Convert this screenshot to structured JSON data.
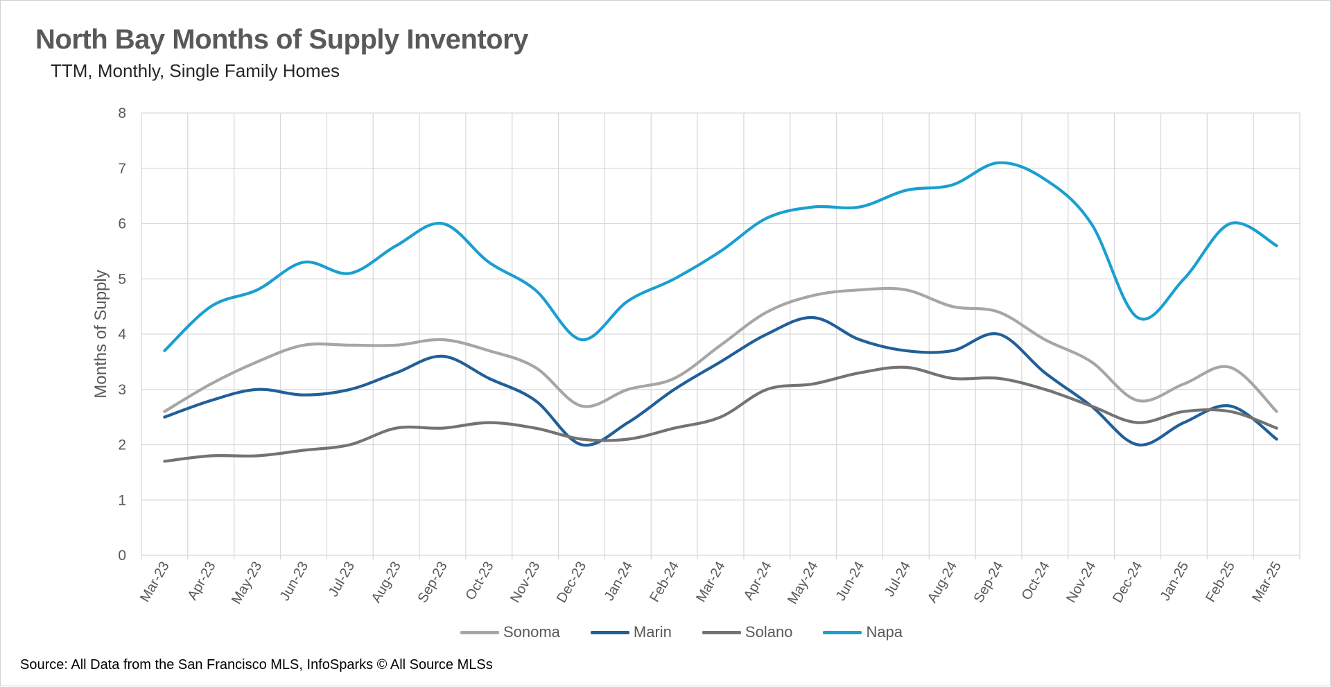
{
  "title": "North Bay Months of Supply Inventory",
  "subtitle": "TTM, Monthly, Single Family Homes",
  "source": "Source: All Data from the San Francisco MLS, InfoSparks © All Source MLSs",
  "chart_data": {
    "type": "line",
    "title": "North Bay Months of Supply Inventory",
    "subtitle": "TTM, Monthly, Single Family Homes",
    "xlabel": "",
    "ylabel": "Months of Supply",
    "ylim": [
      0,
      8
    ],
    "yticks": [
      "0",
      "1",
      "2",
      "3",
      "4",
      "5",
      "6",
      "7",
      "8"
    ],
    "grid": true,
    "legend_position": "bottom",
    "categories": [
      "Mar-23",
      "Apr-23",
      "May-23",
      "Jun-23",
      "Jul-23",
      "Aug-23",
      "Sep-23",
      "Oct-23",
      "Nov-23",
      "Dec-23",
      "Jan-24",
      "Feb-24",
      "Mar-24",
      "Apr-24",
      "May-24",
      "Jun-24",
      "Jul-24",
      "Aug-24",
      "Sep-24",
      "Oct-24",
      "Nov-24",
      "Dec-24",
      "Jan-25",
      "Feb-25",
      "Mar-25"
    ],
    "series": [
      {
        "name": "Sonoma",
        "color": "#a6a6a6",
        "values": [
          2.6,
          3.1,
          3.5,
          3.8,
          3.8,
          3.8,
          3.9,
          3.7,
          3.4,
          2.7,
          3.0,
          3.2,
          3.8,
          4.4,
          4.7,
          4.8,
          4.8,
          4.5,
          4.4,
          3.9,
          3.5,
          2.8,
          3.1,
          3.4,
          2.6
        ]
      },
      {
        "name": "Marin",
        "color": "#215f9a",
        "values": [
          2.5,
          2.8,
          3.0,
          2.9,
          3.0,
          3.3,
          3.6,
          3.2,
          2.8,
          2.0,
          2.4,
          3.0,
          3.5,
          4.0,
          4.3,
          3.9,
          3.7,
          3.7,
          4.0,
          3.3,
          2.7,
          2.0,
          2.4,
          2.7,
          2.1
        ]
      },
      {
        "name": "Solano",
        "color": "#737373",
        "values": [
          1.7,
          1.8,
          1.8,
          1.9,
          2.0,
          2.3,
          2.3,
          2.4,
          2.3,
          2.1,
          2.1,
          2.3,
          2.5,
          3.0,
          3.1,
          3.3,
          3.4,
          3.2,
          3.2,
          3.0,
          2.7,
          2.4,
          2.6,
          2.6,
          2.3
        ]
      },
      {
        "name": "Napa",
        "color": "#1a9fd0",
        "values": [
          3.7,
          4.5,
          4.8,
          5.3,
          5.1,
          5.6,
          6.0,
          5.3,
          4.8,
          3.9,
          4.6,
          5.0,
          5.5,
          6.1,
          6.3,
          6.3,
          6.6,
          6.7,
          7.1,
          6.8,
          6.0,
          4.3,
          5.0,
          6.0,
          5.6
        ]
      }
    ]
  }
}
